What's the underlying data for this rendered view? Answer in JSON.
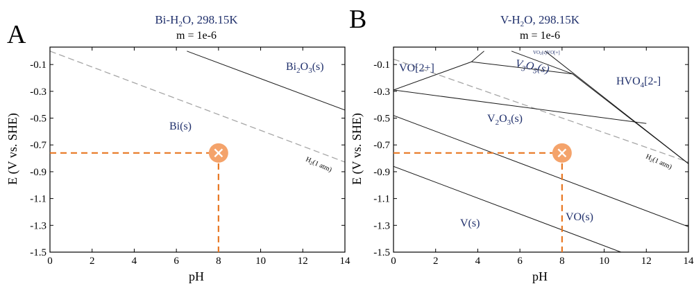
{
  "panels": [
    {
      "letter": "A",
      "title_species": "Bi-H",
      "title_sub": "2",
      "title_rest": "O, 298.15K",
      "subtitle": "m = 1e-6",
      "xlabel": "pH",
      "ylabel": "E (V vs. SHE)",
      "regions": [
        {
          "label": "Bi",
          "sub": "2",
          "label2": "O",
          "sub2": "3",
          "label3": "(s)"
        },
        {
          "label": "Bi(s)"
        }
      ],
      "h2_label": "H",
      "h2_sub": "2",
      "h2_rest": "(1 atm)"
    },
    {
      "letter": "B",
      "title_species": "V-H",
      "title_sub": "2",
      "title_rest": "O, 298.15K",
      "subtitle": "m = 1e-6",
      "xlabel": "pH",
      "ylabel": "E (V vs. SHE)",
      "regions": [
        {
          "label": "VO[2+]"
        },
        {
          "label": "V",
          "sub": "3",
          "label2": "O",
          "sub2": "5",
          "label3": "(s)"
        },
        {
          "label": "HVO",
          "sub": "4",
          "label2": "[2-]"
        },
        {
          "label": "V",
          "sub": "2",
          "label2": "O",
          "sub2": "3",
          "label3": "(s)"
        },
        {
          "label": "V(s)"
        },
        {
          "label": "VO(s)"
        },
        {
          "label": "VO",
          "sub": "2",
          "label2": "(s)",
          "label3": "VO",
          "label4": "[+]"
        }
      ],
      "h2_label": "H",
      "h2_sub": "2",
      "h2_rest": "(1 atm)"
    }
  ],
  "chart_data": [
    {
      "type": "line",
      "title": "Bi-H2O, 298.15K",
      "subtitle": "m = 1e-6",
      "xlabel": "pH",
      "ylabel": "E (V vs. SHE)",
      "xlim": [
        0,
        14
      ],
      "ylim": [
        -1.5,
        0.03
      ],
      "xticks": [
        0,
        2,
        4,
        6,
        8,
        10,
        12,
        14
      ],
      "yticks": [
        -0.1,
        -0.3,
        -0.5,
        -0.7,
        -0.9,
        -1.1,
        -1.3,
        -1.5
      ],
      "boundaries": [
        {
          "name": "Bi2O3/Bi",
          "style": "solid",
          "x": [
            6.5,
            14
          ],
          "y": [
            0.0,
            -0.44
          ]
        }
      ],
      "h2_line": {
        "style": "dashed",
        "x": [
          0,
          14
        ],
        "y": [
          0.0,
          -0.828
        ]
      },
      "marker": {
        "x": 8,
        "y": -0.76,
        "symbol": "x",
        "color": "#f4a36b"
      },
      "guides": [
        {
          "x": [
            0,
            8
          ],
          "y": [
            -0.76,
            -0.76
          ],
          "color": "#e87722",
          "style": "dashed"
        },
        {
          "x": [
            8,
            8
          ],
          "y": [
            -0.76,
            -1.5
          ],
          "color": "#e87722",
          "style": "dashed"
        }
      ]
    },
    {
      "type": "line",
      "title": "V-H2O, 298.15K",
      "subtitle": "m = 1e-6",
      "xlabel": "pH",
      "ylabel": "E (V vs. SHE)",
      "xlim": [
        0,
        14
      ],
      "ylim": [
        -1.5,
        0.03
      ],
      "xticks": [
        0,
        2,
        4,
        6,
        8,
        10,
        12,
        14
      ],
      "yticks": [
        -0.1,
        -0.3,
        -0.5,
        -0.7,
        -0.9,
        -1.1,
        -1.3,
        -1.5
      ],
      "boundaries": [
        {
          "name": "VO2+/V2O3 left",
          "style": "solid",
          "x": [
            0,
            3.7
          ],
          "y": [
            -0.29,
            -0.08
          ]
        },
        {
          "name": "VO2+ upper",
          "style": "solid",
          "x": [
            3.7,
            4.3
          ],
          "y": [
            -0.08,
            0.0
          ]
        },
        {
          "name": "V3O5 upper",
          "style": "solid",
          "x": [
            3.7,
            8.5
          ],
          "y": [
            -0.08,
            -0.17
          ]
        },
        {
          "name": "V2O5 bound",
          "style": "solid",
          "x": [
            5.6,
            8.5
          ],
          "y": [
            0.0,
            -0.17
          ]
        },
        {
          "name": "V3O5/V2O3",
          "style": "solid",
          "x": [
            0,
            12.0
          ],
          "y": [
            -0.29,
            -0.54
          ]
        },
        {
          "name": "HVO4 boundary",
          "style": "solid",
          "x": [
            8.5,
            14
          ],
          "y": [
            -0.17,
            -0.84
          ]
        },
        {
          "name": "VO2 top",
          "style": "solid",
          "x": [
            7.2,
            14
          ],
          "y": [
            0.0,
            -0.84
          ]
        },
        {
          "name": "V2O3/VO",
          "style": "solid",
          "x": [
            0,
            14
          ],
          "y": [
            -0.48,
            -1.31
          ]
        },
        {
          "name": "VO/V",
          "style": "solid",
          "x": [
            0,
            10.8
          ],
          "y": [
            -0.86,
            -1.5
          ]
        }
      ],
      "h2_line": {
        "style": "dashed",
        "x": [
          0,
          14
        ],
        "y": [
          -0.06,
          -0.828
        ]
      },
      "marker": {
        "x": 8,
        "y": -0.76,
        "symbol": "x",
        "color": "#f4a36b"
      },
      "guides": [
        {
          "x": [
            0,
            8
          ],
          "y": [
            -0.76,
            -0.76
          ],
          "color": "#e87722",
          "style": "dashed"
        },
        {
          "x": [
            8,
            8
          ],
          "y": [
            -0.76,
            -1.5
          ],
          "color": "#e87722",
          "style": "dashed"
        }
      ]
    }
  ]
}
